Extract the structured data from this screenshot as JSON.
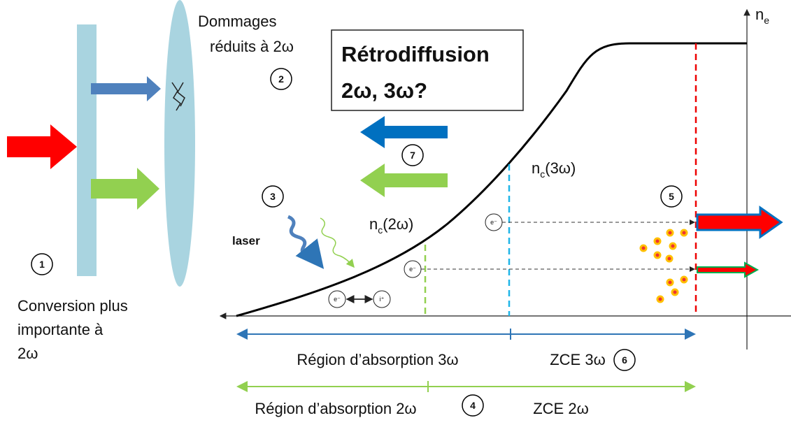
{
  "damage": [
    "Dommages",
    "réduits à 2ω"
  ],
  "box": [
    "Rétrodiffusion",
    "2ω, 3ω?"
  ],
  "conversion": [
    "Conversion plus",
    "importante à",
    "2ω"
  ],
  "laser": "laser",
  "markers": [
    "1",
    "2",
    "3",
    "4",
    "5",
    "6",
    "7"
  ],
  "ne": {
    "main": "n",
    "sub": "e"
  },
  "nc2": {
    "main": "n",
    "sub": "c",
    "rest": "(2ω)"
  },
  "nc3": {
    "main": "n",
    "sub": "c",
    "rest": "(3ω)"
  },
  "particles": {
    "electron": "e⁻",
    "ion": "i⁺"
  },
  "regions": {
    "abs3": "Région d’absorption 3ω",
    "zce3": "ZCE 3ω",
    "abs2": "Région d’absorption 2ω",
    "zce2": "ZCE 2ω"
  }
}
